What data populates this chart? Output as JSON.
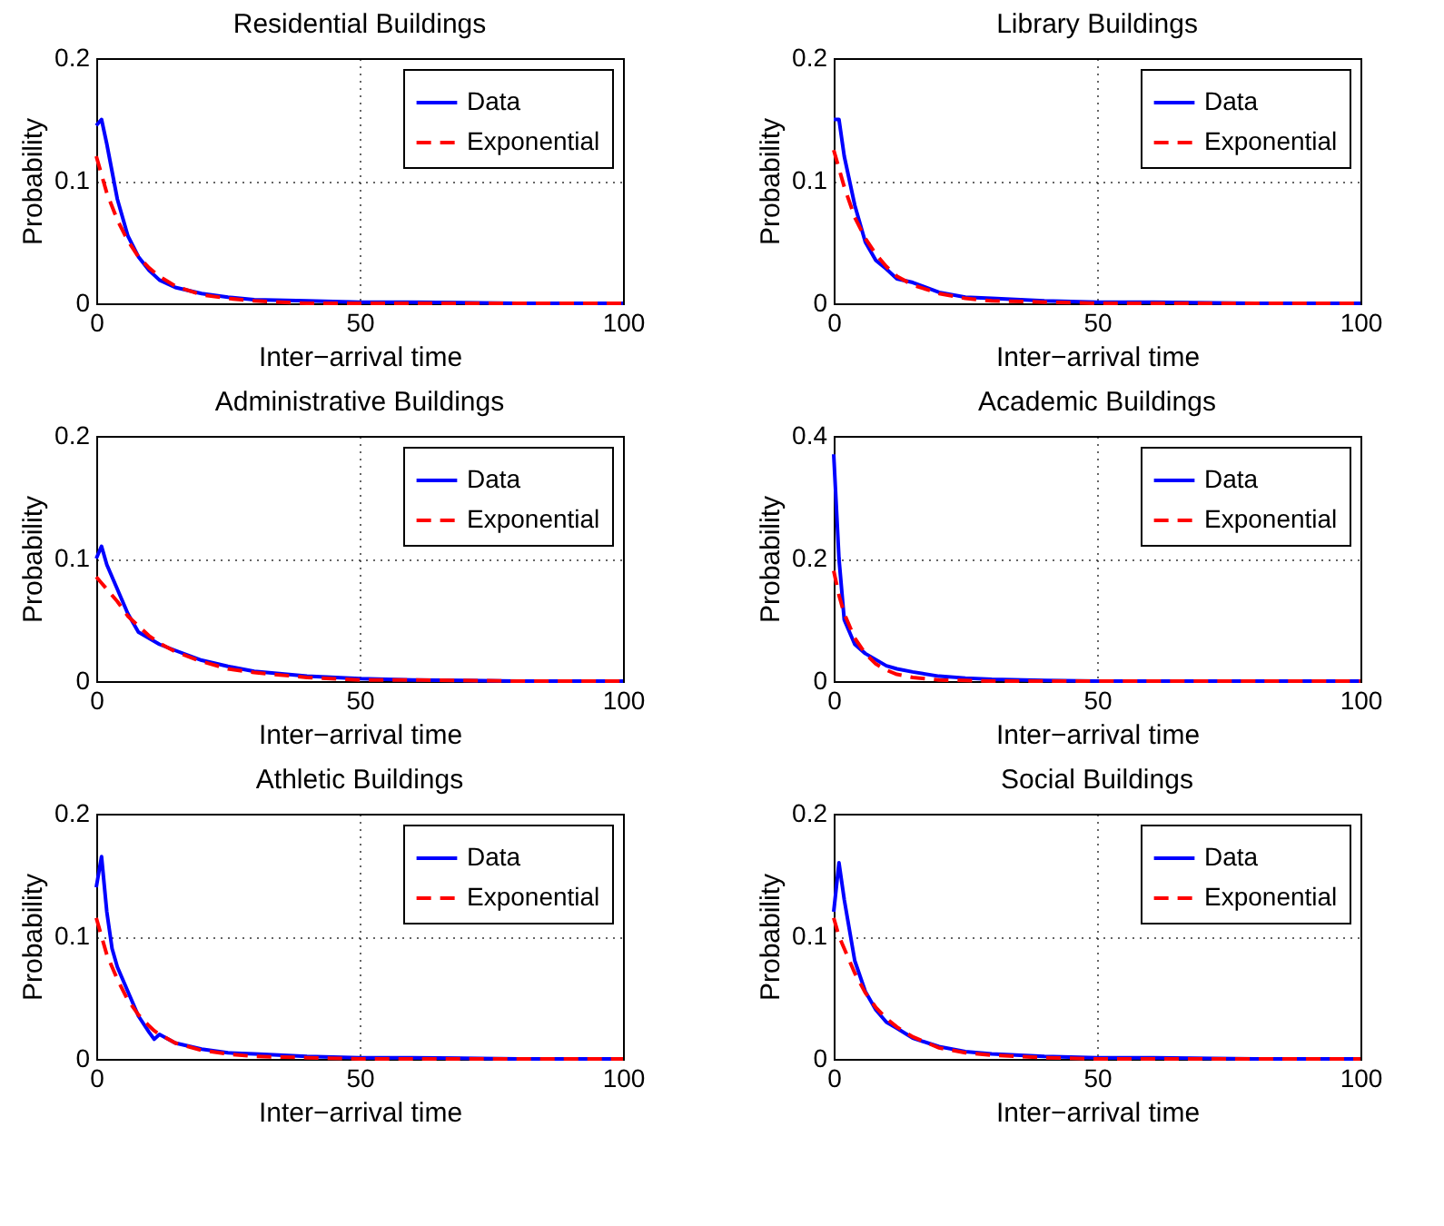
{
  "chart_data": [
    {
      "type": "line",
      "title": "Residential Buildings",
      "xlabel": "Inter−arrival time",
      "ylabel": "Probability",
      "xlim": [
        0,
        100
      ],
      "xticks": [
        0,
        50,
        100
      ],
      "ylim": [
        0,
        0.2
      ],
      "yticks": [
        0,
        0.1,
        0.2
      ],
      "grid": true,
      "legend": "top right",
      "x": [
        0,
        1,
        2,
        4,
        6,
        8,
        10,
        12,
        15,
        20,
        25,
        30,
        40,
        50,
        60,
        80,
        100
      ],
      "series": [
        {
          "name": "Data",
          "color": "#0000ff",
          "line_style": "solid",
          "values": [
            0.145,
            0.15,
            0.13,
            0.085,
            0.055,
            0.038,
            0.027,
            0.019,
            0.013,
            0.008,
            0.005,
            0.003,
            0.002,
            0.001,
            0.001,
            0,
            0
          ]
        },
        {
          "name": "Exponential",
          "color": "#ff0000",
          "line_style": "dashed",
          "values": [
            0.12,
            0.105,
            0.09,
            0.068,
            0.051,
            0.038,
            0.029,
            0.022,
            0.014,
            0.007,
            0.004,
            0.002,
            0,
            0,
            0,
            0,
            0
          ]
        }
      ]
    },
    {
      "type": "line",
      "title": "Library Buildings",
      "xlabel": "Inter−arrival time",
      "ylabel": "Probability",
      "xlim": [
        0,
        100
      ],
      "xticks": [
        0,
        50,
        100
      ],
      "ylim": [
        0,
        0.2
      ],
      "yticks": [
        0,
        0.1,
        0.2
      ],
      "grid": true,
      "legend": "top right",
      "x": [
        0,
        1,
        2,
        4,
        6,
        8,
        10,
        12,
        15,
        20,
        25,
        30,
        40,
        50,
        60,
        80,
        100
      ],
      "series": [
        {
          "name": "Data",
          "color": "#0000ff",
          "line_style": "solid",
          "values": [
            0.15,
            0.15,
            0.12,
            0.08,
            0.05,
            0.035,
            0.028,
            0.02,
            0.017,
            0.009,
            0.005,
            0.004,
            0.002,
            0.001,
            0.001,
            0,
            0
          ]
        },
        {
          "name": "Exponential",
          "color": "#ff0000",
          "line_style": "dashed",
          "values": [
            0.125,
            0.11,
            0.095,
            0.07,
            0.053,
            0.04,
            0.03,
            0.022,
            0.015,
            0.008,
            0.004,
            0.002,
            0.001,
            0,
            0,
            0,
            0
          ]
        }
      ]
    },
    {
      "type": "line",
      "title": "Administrative Buildings",
      "xlabel": "Inter−arrival time",
      "ylabel": "Probability",
      "xlim": [
        0,
        100
      ],
      "xticks": [
        0,
        50,
        100
      ],
      "ylim": [
        0,
        0.2
      ],
      "yticks": [
        0,
        0.1,
        0.2
      ],
      "grid": true,
      "legend": "top right",
      "x": [
        0,
        1,
        2,
        4,
        6,
        8,
        10,
        12,
        15,
        20,
        25,
        30,
        40,
        50,
        60,
        80,
        100
      ],
      "series": [
        {
          "name": "Data",
          "color": "#0000ff",
          "line_style": "solid",
          "values": [
            0.1,
            0.11,
            0.095,
            0.075,
            0.055,
            0.04,
            0.035,
            0.03,
            0.025,
            0.017,
            0.012,
            0.008,
            0.004,
            0.002,
            0.001,
            0,
            0
          ]
        },
        {
          "name": "Exponential",
          "color": "#ff0000",
          "line_style": "dashed",
          "values": [
            0.085,
            0.08,
            0.075,
            0.065,
            0.053,
            0.045,
            0.037,
            0.031,
            0.024,
            0.016,
            0.01,
            0.007,
            0.003,
            0.001,
            0.001,
            0,
            0
          ]
        }
      ]
    },
    {
      "type": "line",
      "title": "Academic Buildings",
      "xlabel": "Inter−arrival time",
      "ylabel": "Probability",
      "xlim": [
        0,
        100
      ],
      "xticks": [
        0,
        50,
        100
      ],
      "ylim": [
        0,
        0.4
      ],
      "yticks": [
        0,
        0.2,
        0.4
      ],
      "grid": true,
      "legend": "top right",
      "x": [
        0,
        1,
        2,
        4,
        6,
        8,
        10,
        12,
        15,
        20,
        25,
        30,
        40,
        50,
        60,
        80,
        100
      ],
      "series": [
        {
          "name": "Data",
          "color": "#0000ff",
          "line_style": "solid",
          "values": [
            0.37,
            0.2,
            0.1,
            0.06,
            0.045,
            0.035,
            0.025,
            0.02,
            0.015,
            0.008,
            0.005,
            0.003,
            0.001,
            0,
            0,
            0,
            0
          ]
        },
        {
          "name": "Exponential",
          "color": "#ff0000",
          "line_style": "dashed",
          "values": [
            0.18,
            0.14,
            0.11,
            0.07,
            0.045,
            0.028,
            0.018,
            0.011,
            0.006,
            0.002,
            0.001,
            0,
            0,
            0,
            0,
            0,
            0
          ]
        }
      ]
    },
    {
      "type": "line",
      "title": "Athletic Buildings",
      "xlabel": "Inter−arrival time",
      "ylabel": "Probability",
      "xlim": [
        0,
        100
      ],
      "xticks": [
        0,
        50,
        100
      ],
      "ylim": [
        0,
        0.2
      ],
      "yticks": [
        0,
        0.1,
        0.2
      ],
      "grid": true,
      "legend": "top right",
      "x": [
        0,
        1,
        2,
        3,
        4,
        6,
        8,
        10,
        11,
        12,
        15,
        20,
        25,
        30,
        40,
        50,
        60,
        80,
        100
      ],
      "series": [
        {
          "name": "Data",
          "color": "#0000ff",
          "line_style": "solid",
          "values": [
            0.14,
            0.165,
            0.12,
            0.09,
            0.075,
            0.055,
            0.035,
            0.022,
            0.016,
            0.02,
            0.013,
            0.008,
            0.005,
            0.004,
            0.002,
            0.001,
            0.001,
            0,
            0
          ]
        },
        {
          "name": "Exponential",
          "color": "#ff0000",
          "line_style": "dashed",
          "values": [
            0.115,
            0.1,
            0.085,
            0.075,
            0.065,
            0.048,
            0.036,
            0.027,
            0.023,
            0.02,
            0.013,
            0.007,
            0.004,
            0.002,
            0.001,
            0,
            0,
            0,
            0
          ]
        }
      ]
    },
    {
      "type": "line",
      "title": "Social Buildings",
      "xlabel": "Inter−arrival time",
      "ylabel": "Probability",
      "xlim": [
        0,
        100
      ],
      "xticks": [
        0,
        50,
        100
      ],
      "ylim": [
        0,
        0.2
      ],
      "yticks": [
        0,
        0.1,
        0.2
      ],
      "grid": true,
      "legend": "top right",
      "x": [
        0,
        1,
        2,
        4,
        6,
        8,
        10,
        12,
        15,
        20,
        25,
        30,
        40,
        50,
        60,
        80,
        100
      ],
      "series": [
        {
          "name": "Data",
          "color": "#0000ff",
          "line_style": "solid",
          "values": [
            0.12,
            0.16,
            0.13,
            0.08,
            0.055,
            0.04,
            0.03,
            0.025,
            0.017,
            0.01,
            0.006,
            0.004,
            0.002,
            0.001,
            0.001,
            0,
            0
          ]
        },
        {
          "name": "Exponential",
          "color": "#ff0000",
          "line_style": "dashed",
          "values": [
            0.115,
            0.1,
            0.09,
            0.07,
            0.054,
            0.042,
            0.033,
            0.026,
            0.018,
            0.009,
            0.005,
            0.003,
            0.001,
            0,
            0,
            0,
            0
          ]
        }
      ]
    }
  ]
}
